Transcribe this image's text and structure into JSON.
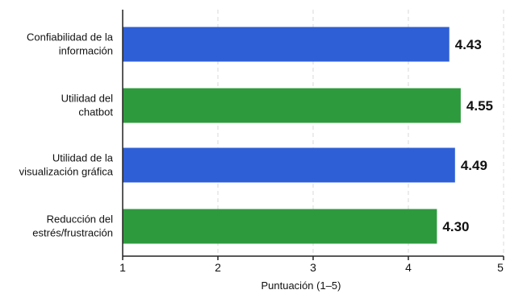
{
  "chart_data": {
    "type": "bar",
    "orientation": "horizontal",
    "categories": [
      [
        "Confiabilidad de la",
        "información"
      ],
      [
        "Utilidad del",
        "chatbot"
      ],
      [
        "Utilidad de la",
        "visualización gráfica"
      ],
      [
        "Reducción del",
        "estrés/frustración"
      ]
    ],
    "values": [
      4.43,
      4.55,
      4.49,
      4.3
    ],
    "value_labels": [
      "4.43",
      "4.55",
      "4.49",
      "4.30"
    ],
    "bar_colors": [
      "#2f5fd6",
      "#2e9a3e",
      "#2f5fd6",
      "#2e9a3e"
    ],
    "xlabel": "Puntuación (1–5)",
    "ylabel": "",
    "title": "",
    "xlim": [
      1,
      5
    ],
    "xticks": [
      "1",
      "2",
      "3",
      "4",
      "5"
    ],
    "grid": "vertical dashed",
    "legend": "none"
  }
}
